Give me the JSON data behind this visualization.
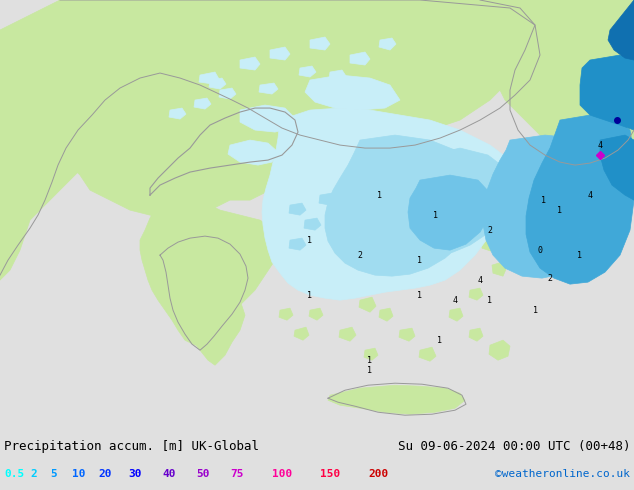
{
  "title_left": "Precipitation accum. [m] UK-Global",
  "title_right": "Su 09-06-2024 00:00 UTC (00+48)",
  "credit": "©weatheronline.co.uk",
  "legend_values": [
    "0.5",
    "2",
    "5",
    "10",
    "20",
    "30",
    "40",
    "50",
    "75",
    "100",
    "150",
    "200"
  ],
  "legend_colors": [
    "#00ffff",
    "#00ccff",
    "#0099ff",
    "#0066ff",
    "#0033ff",
    "#0000ff",
    "#6600cc",
    "#9900cc",
    "#cc00cc",
    "#ff0099",
    "#ff0044",
    "#cc0000"
  ],
  "bg_color": "#e0e0e0",
  "sea_color": "#d0d8e4",
  "land_color": "#c8e8a0",
  "land_color2": "#b8dc90",
  "precip_1": "#c8eef8",
  "precip_2": "#a0dcf0",
  "precip_3": "#70c4e8",
  "precip_4": "#40a8d8",
  "precip_5": "#2090c8",
  "precip_6": "#1070b0",
  "bottom_bar_color": "#d8d8d8",
  "title_fontsize": 9,
  "credit_fontsize": 8,
  "legend_fontsize": 8,
  "border_color": "#999999"
}
